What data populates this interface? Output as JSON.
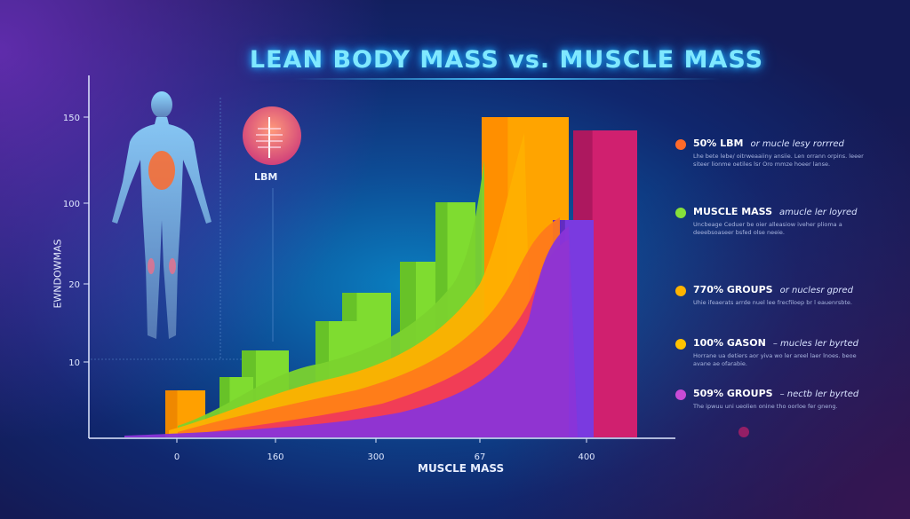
{
  "title": "LEAN BODY MASS vs. MUSCLE MASS",
  "icon_label": "LBM",
  "chart_data": {
    "type": "area",
    "title": "LEAN BODY MASS vs. MUSCLE MASS",
    "xlabel": "MUSCLE MASS",
    "ylabel": "EWNDOWMAS",
    "x_ticks": [
      "0",
      "160",
      "300",
      "67",
      "400"
    ],
    "y_ticks": [
      "150",
      "100",
      "20",
      "10"
    ],
    "grid": false,
    "legend_placement": "right",
    "series_colors": [
      "#ff6a2a",
      "#86e03a",
      "#ffb400",
      "#ffc200",
      "#c84bd6"
    ]
  },
  "legend": [
    {
      "color": "#ff6a2a",
      "title": "50%  LBM",
      "subtitle": "or mucle lesy rorrred",
      "desc": "Lhe bete lebe/ oitrweaaiiny ansiie. Len orrann orpins. leeer siteer lionme oetiles lsr Oro mmze hoeer lanse."
    },
    {
      "color": "#86e03a",
      "title": "MUSCLE MASS",
      "subtitle": "amucle ler loyred",
      "desc": "Uncbeage Ceduer be oier alleasiow iveher plioma a deeebsoaseer bsfed olse neeie."
    },
    {
      "color": "#ffb400",
      "title": "770% GROUPS",
      "subtitle": "or nuclesr gpred",
      "desc": "Uhie ifeaerats arrde nuel lee frecfiloep br l eauenrsbte."
    },
    {
      "color": "#ffc200",
      "title": "100% GASON",
      "subtitle": "– mucles ler byrted",
      "desc": "Horrane ua detiers aor yiva wo ler areel laer lnoes. beoe avane ae ofarabie."
    },
    {
      "color": "#c84bd6",
      "title": "509% GROUPS",
      "subtitle": "– nectb ler byrted",
      "desc": "The ipwuu uni ueolien onine tho oorloe fer gneng."
    }
  ]
}
